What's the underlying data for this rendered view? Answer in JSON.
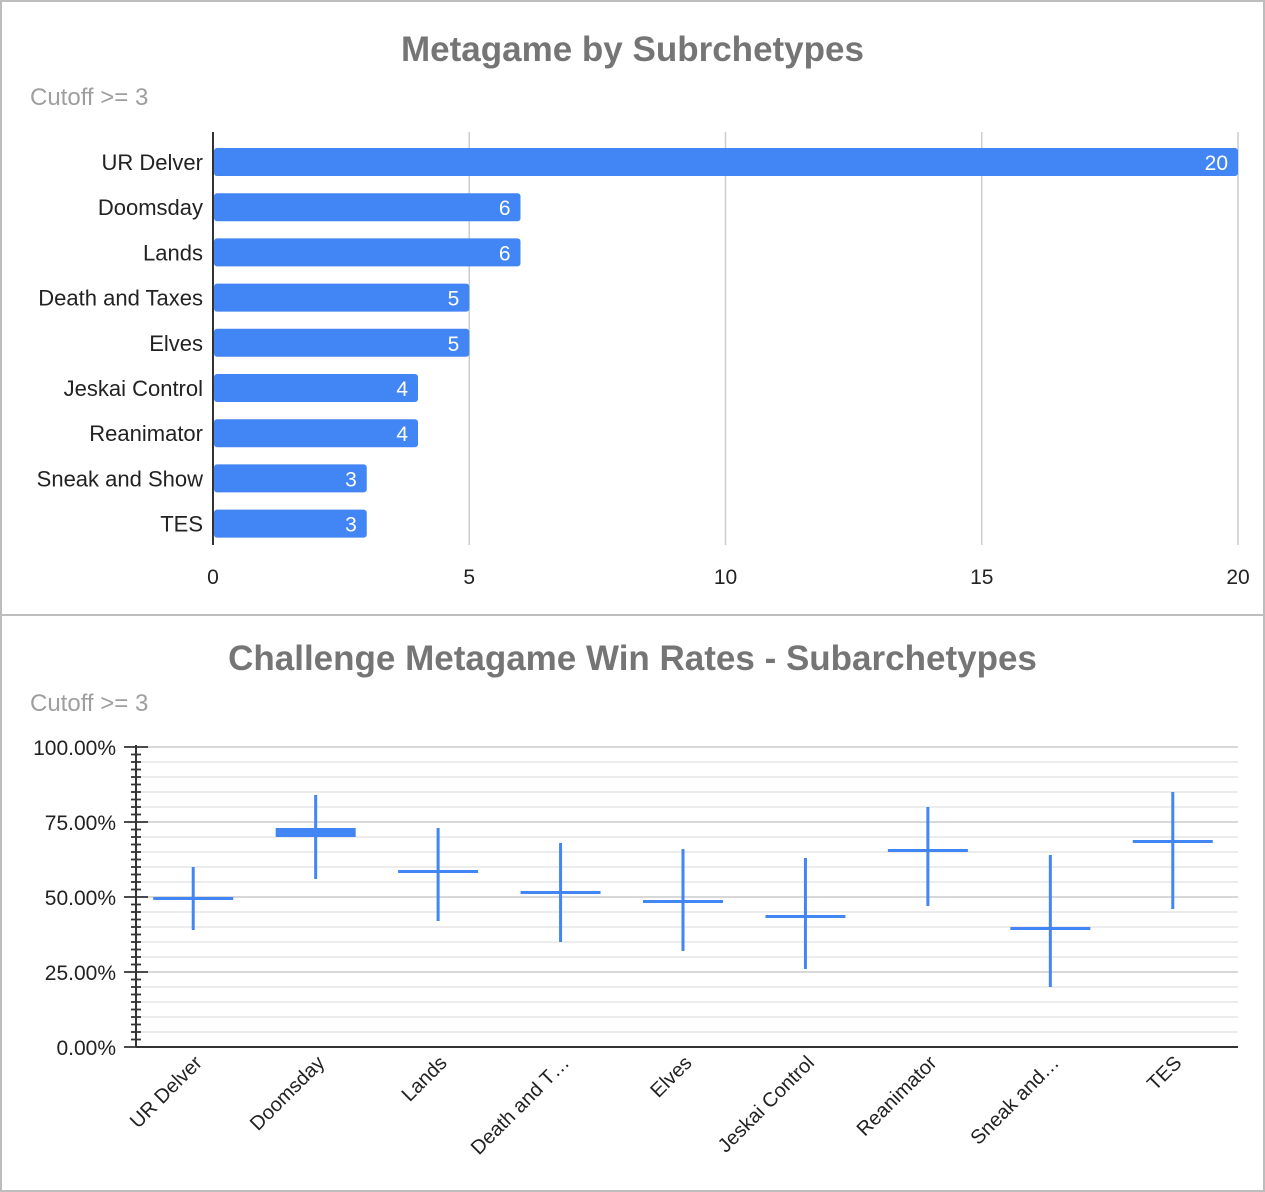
{
  "chart_data": [
    {
      "type": "bar",
      "orientation": "horizontal",
      "title": "Metagame by Subrchetypes",
      "subtitle": "Cutoff >= 3",
      "categories": [
        "UR Delver",
        "Doomsday",
        "Lands",
        "Death and Taxes",
        "Elves",
        "Jeskai Control",
        "Reanimator",
        "Sneak and Show",
        "TES"
      ],
      "values": [
        20,
        6,
        6,
        5,
        5,
        4,
        4,
        3,
        3
      ],
      "data_labels": [
        "20",
        "6",
        "6",
        "5",
        "5",
        "4",
        "4",
        "3",
        "3"
      ],
      "xlim": [
        0,
        20
      ],
      "xticks": [
        "0",
        "5",
        "10",
        "15",
        "20"
      ],
      "xticks_values": [
        0,
        5,
        10,
        15,
        20
      ],
      "grid": true,
      "color": "#4285f4"
    },
    {
      "type": "candlestick",
      "title": "Challenge Metagame Win Rates - Subarchetypes",
      "subtitle": "Cutoff >= 3",
      "categories": [
        "UR Delver",
        "Doomsday",
        "Lands",
        "Death and T…",
        "Elves",
        "Jeskai Control",
        "Reanimator",
        "Sneak and…",
        "TES"
      ],
      "low": [
        39,
        56,
        42,
        35,
        32,
        26,
        47,
        20,
        46
      ],
      "high": [
        60,
        84,
        73,
        68,
        66,
        63,
        80,
        64,
        85
      ],
      "open": [
        50,
        73,
        59,
        52,
        48,
        43,
        66,
        40,
        69
      ],
      "close": [
        49,
        70,
        58,
        51,
        49,
        44,
        65,
        40,
        68
      ],
      "ylim": [
        0,
        100
      ],
      "yticks": [
        "0.00%",
        "25.00%",
        "50.00%",
        "75.00%",
        "100.00%"
      ],
      "yticks_values": [
        0,
        25,
        50,
        75,
        100
      ],
      "grid": true,
      "color": "#4285f4"
    }
  ]
}
